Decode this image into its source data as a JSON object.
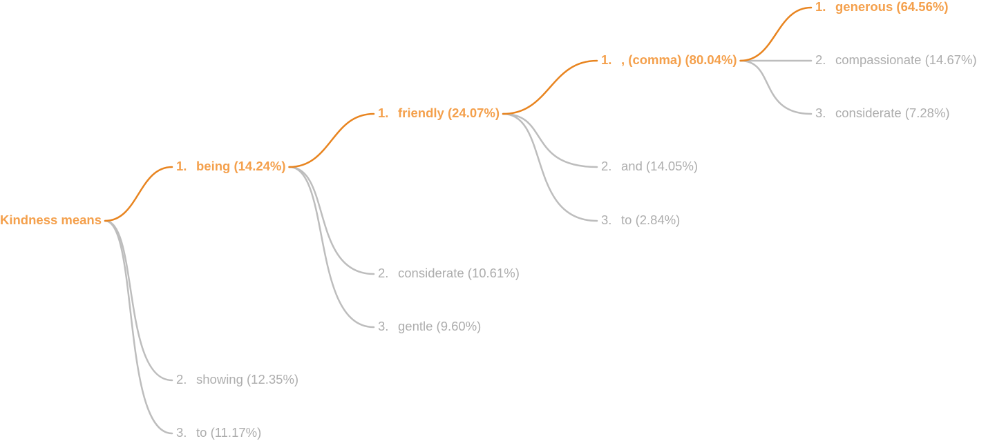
{
  "tree": {
    "label": "Kindness means",
    "children": [
      {
        "rank": "1.",
        "label": "being (14.24%)",
        "children": [
          {
            "rank": "1.",
            "label": "friendly (24.07%)",
            "children": [
              {
                "rank": "1.",
                "label": ", (comma) (80.04%)",
                "children": [
                  {
                    "rank": "1.",
                    "label": "generous (64.56%)"
                  },
                  {
                    "rank": "2.",
                    "label": "compassionate (14.67%)"
                  },
                  {
                    "rank": "3.",
                    "label": "considerate (7.28%)"
                  }
                ]
              },
              {
                "rank": "2.",
                "label": "and (14.05%)"
              },
              {
                "rank": "3.",
                "label": "to (2.84%)"
              }
            ]
          },
          {
            "rank": "2.",
            "label": "considerate (10.61%)"
          },
          {
            "rank": "3.",
            "label": "gentle (9.60%)"
          }
        ]
      },
      {
        "rank": "2.",
        "label": "showing (12.35%)"
      },
      {
        "rank": "3.",
        "label": "to (11.17%)"
      }
    ]
  }
}
